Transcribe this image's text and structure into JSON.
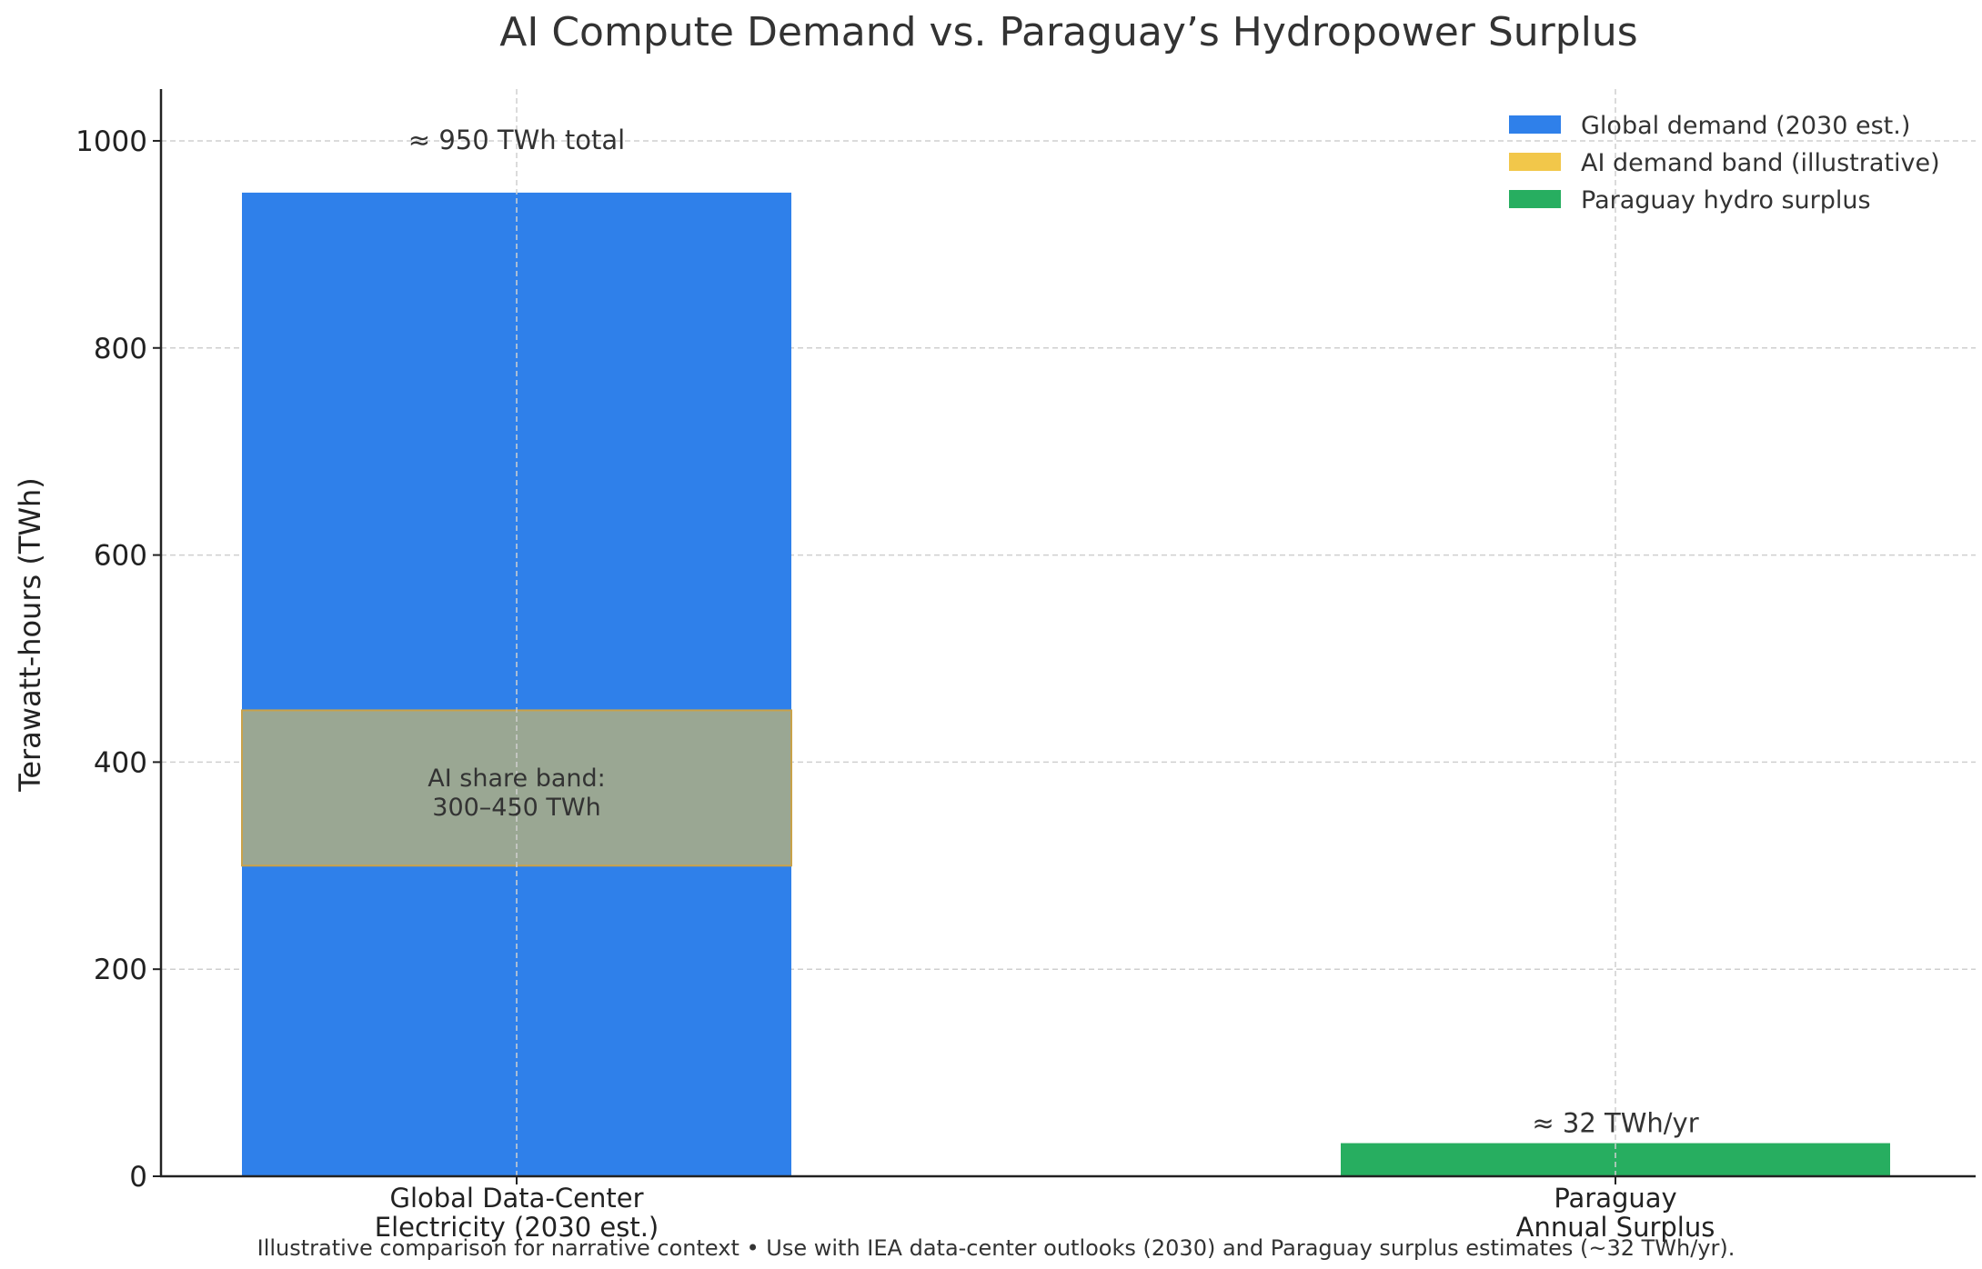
{
  "chart_data": {
    "type": "bar",
    "title": "AI Compute Demand vs. Paraguay’s Hydropower Surplus",
    "ylabel": "Terawatt-hours (TWh)",
    "xlabel": "",
    "ylim": [
      0,
      1050
    ],
    "yticks": [
      0,
      200,
      400,
      600,
      800,
      1000
    ],
    "grid": true,
    "legend_position": "top-right",
    "categories": [
      [
        "Global Data-Center",
        "Electricity (2030 est.)"
      ],
      [
        "Paraguay",
        "Annual Surplus"
      ]
    ],
    "series": [
      {
        "name": "Global demand (2030 est.)",
        "color": "#2f80ea",
        "category_index": 0,
        "value": 950,
        "label": "≈ 950 TWh total"
      },
      {
        "name": "AI demand band (illustrative)",
        "color": "#f2c74a",
        "category_index": 0,
        "range": [
          300,
          450
        ],
        "label_lines": [
          "AI share band:",
          "300–450 TWh"
        ]
      },
      {
        "name": "Paraguay hydro surplus",
        "color": "#27ae60",
        "category_index": 1,
        "value": 32,
        "label": "≈ 32 TWh/yr"
      }
    ],
    "footnote": "Illustrative comparison for narrative context • Use with IEA data-center outlooks (2030) and Paraguay surplus estimates (~32 TWh/yr)."
  }
}
